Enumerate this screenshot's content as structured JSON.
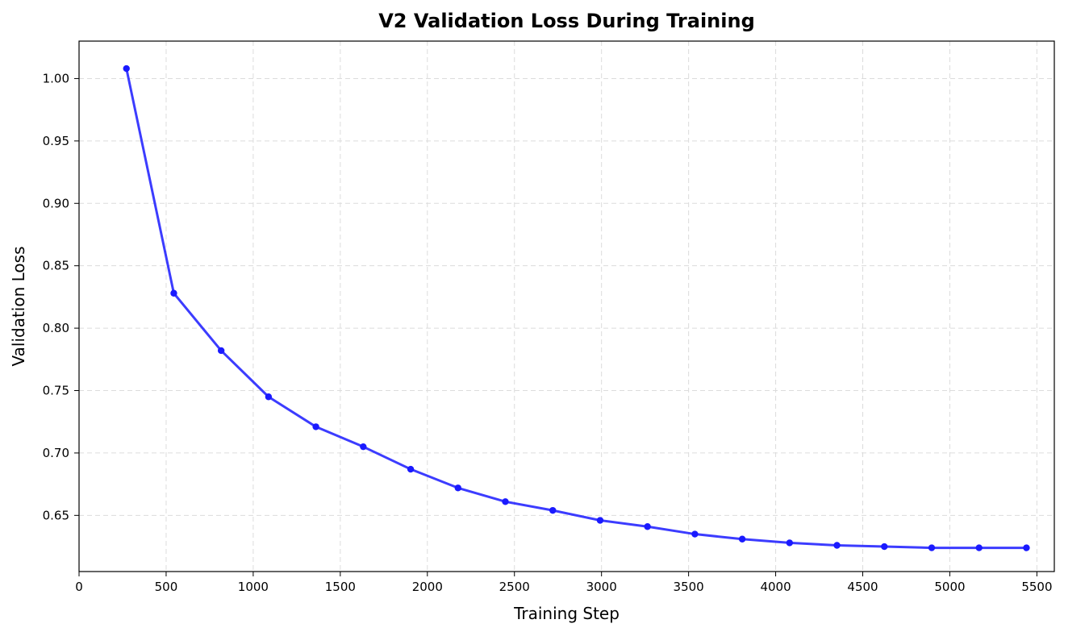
{
  "chart_data": {
    "type": "line",
    "title": "V2 Validation Loss During Training",
    "xlabel": "Training Step",
    "ylabel": "Validation Loss",
    "xlim": [
      0,
      5600
    ],
    "ylim": [
      0.605,
      1.03
    ],
    "xticks": [
      0,
      500,
      1000,
      1500,
      2000,
      2500,
      3000,
      3500,
      4000,
      4500,
      5000,
      5500
    ],
    "yticks": [
      0.65,
      0.7,
      0.75,
      0.8,
      0.85,
      0.9,
      0.95,
      1.0
    ],
    "grid": true,
    "series": [
      {
        "name": "Validation Loss",
        "color": "#1a1aff",
        "marker": "circle",
        "x": [
          272,
          544,
          816,
          1088,
          1360,
          1632,
          1904,
          2176,
          2448,
          2720,
          2992,
          3264,
          3536,
          3808,
          4080,
          4352,
          4624,
          4896,
          5168,
          5440
        ],
        "y": [
          1.008,
          0.828,
          0.782,
          0.745,
          0.721,
          0.705,
          0.687,
          0.672,
          0.661,
          0.654,
          0.646,
          0.641,
          0.635,
          0.631,
          0.628,
          0.626,
          0.625,
          0.624,
          0.624,
          0.624
        ]
      }
    ]
  }
}
